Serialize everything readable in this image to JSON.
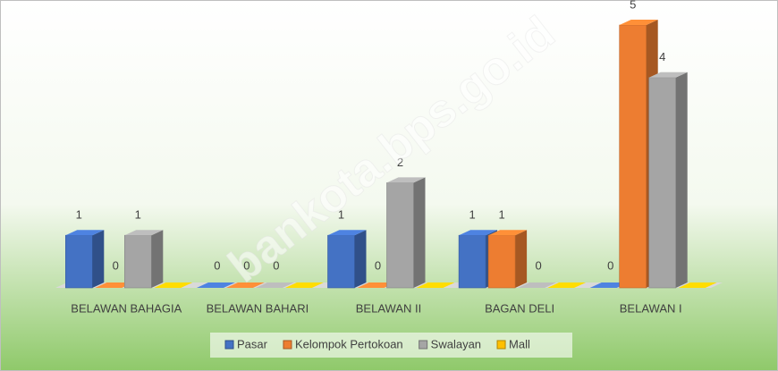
{
  "chart_data": {
    "type": "bar3d",
    "categories": [
      "BELAWAN BAHAGIA",
      "BELAWAN BAHARI",
      "BELAWAN II",
      "BAGAN DELI",
      "BELAWAN I"
    ],
    "series": [
      {
        "name": "Pasar",
        "color": "#4472c4",
        "values": [
          1,
          0,
          1,
          1,
          0
        ],
        "data_labels": true
      },
      {
        "name": "Kelompok Pertokoan",
        "color": "#ed7d31",
        "values": [
          0,
          0,
          0,
          1,
          5
        ],
        "data_labels": true
      },
      {
        "name": "Swalayan",
        "color": "#a5a5a5",
        "values": [
          1,
          0,
          2,
          0,
          4
        ],
        "data_labels": true
      },
      {
        "name": "Mall",
        "color": "#ffc000",
        "values": [
          0,
          0,
          0,
          0,
          0
        ],
        "data_labels": false
      }
    ],
    "ylim": [
      0,
      5
    ],
    "yticks": [
      0,
      0.5,
      1,
      1.5,
      2,
      2.5,
      3,
      3.5,
      4,
      4.5,
      5
    ],
    "grid": true,
    "legend": "bottom",
    "watermark": "bankota.bps.go.id"
  }
}
